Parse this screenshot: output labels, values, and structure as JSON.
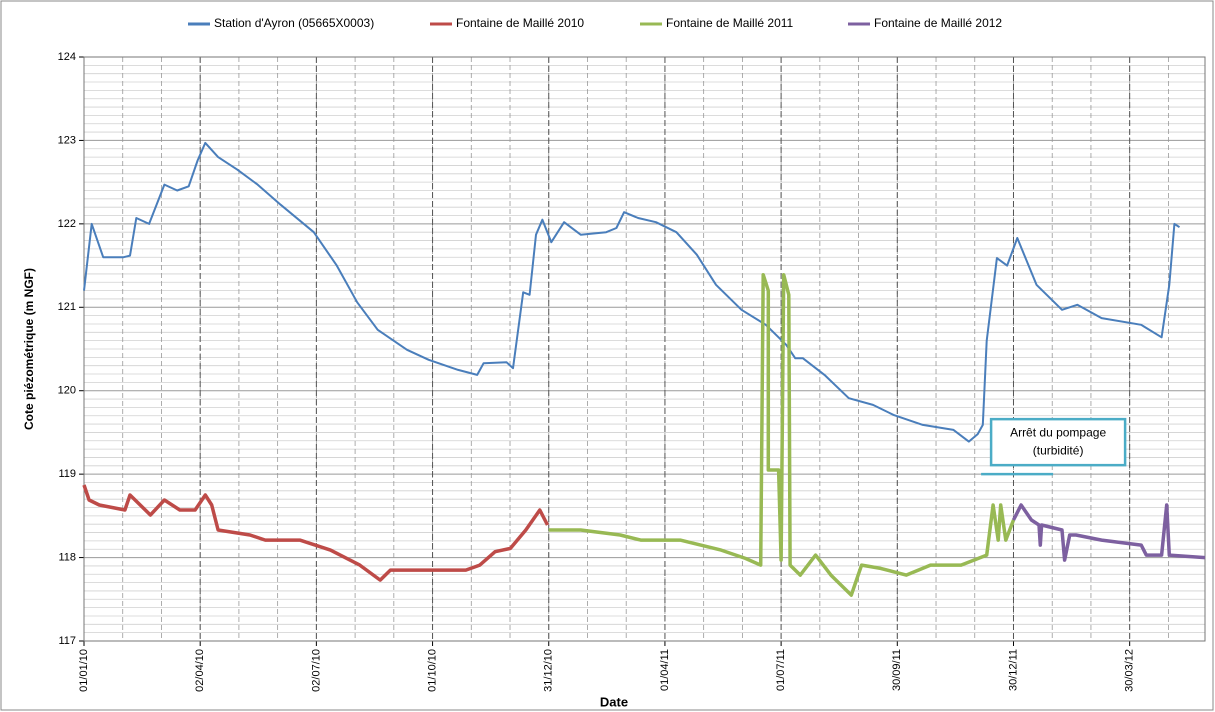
{
  "chart_data": {
    "type": "line",
    "x_label": "Date",
    "y_label": "Cote piézométrique (m NGF)",
    "legend": "top",
    "grid": true,
    "ylim": [
      117,
      124
    ],
    "yticks": [
      117,
      118,
      119,
      120,
      121,
      122,
      123,
      124
    ],
    "xlim": [
      "2010-01-01",
      "2012-05-28"
    ],
    "xticks": [
      {
        "value": "2010-01-01",
        "label": "01/01/10"
      },
      {
        "value": "2010-04-02",
        "label": "02/04/10"
      },
      {
        "value": "2010-07-02",
        "label": "02/07/10"
      },
      {
        "value": "2010-10-01",
        "label": "01/10/10"
      },
      {
        "value": "2010-12-31",
        "label": "31/12/10"
      },
      {
        "value": "2011-04-01",
        "label": "01/04/11"
      },
      {
        "value": "2011-07-01",
        "label": "01/07/11"
      },
      {
        "value": "2011-09-30",
        "label": "30/09/11"
      },
      {
        "value": "2011-12-30",
        "label": "30/12/11"
      },
      {
        "value": "2012-03-30",
        "label": "30/03/12"
      }
    ],
    "annotation": {
      "lines": [
        "Arrêt du pompage",
        "(turbidité)"
      ],
      "x": "2011-12-25",
      "y": 119
    },
    "series": [
      {
        "name": "Station d'Ayron (05665X0003)",
        "color": "#4a7ebb",
        "x": [
          "2010-01-01",
          "2010-01-07",
          "2010-01-16",
          "2010-02-01",
          "2010-02-06",
          "2010-02-11",
          "2010-02-21",
          "2010-03-05",
          "2010-03-15",
          "2010-03-24",
          "2010-03-31",
          "2010-04-06",
          "2010-04-16",
          "2010-05-01",
          "2010-05-17",
          "2010-06-04",
          "2010-06-30",
          "2010-07-18",
          "2010-08-03",
          "2010-08-19",
          "2010-09-11",
          "2010-09-28",
          "2010-10-21",
          "2010-11-05",
          "2010-11-10",
          "2010-11-28",
          "2010-12-03",
          "2010-12-11",
          "2010-12-16",
          "2010-12-21",
          "2010-12-26",
          "2011-01-02",
          "2011-01-12",
          "2011-01-25",
          "2011-02-14",
          "2011-02-22",
          "2011-02-28",
          "2011-03-11",
          "2011-03-25",
          "2011-04-10",
          "2011-04-26",
          "2011-05-11",
          "2011-05-31",
          "2011-06-19",
          "2011-07-05",
          "2011-07-12",
          "2011-07-18",
          "2011-08-04",
          "2011-08-23",
          "2011-09-11",
          "2011-09-27",
          "2011-10-20",
          "2011-11-13",
          "2011-11-25",
          "2011-12-02",
          "2011-12-06",
          "2011-12-09",
          "2011-12-17",
          "2011-12-25",
          "2012-01-02",
          "2012-01-17",
          "2012-02-06",
          "2012-02-18",
          "2012-03-08",
          "2012-04-08",
          "2012-04-24",
          "2012-04-30",
          "2012-05-04",
          "2012-05-08"
        ],
        "values": [
          121.2,
          122.0,
          121.6,
          121.6,
          121.62,
          122.07,
          122.0,
          122.47,
          122.4,
          122.45,
          122.76,
          122.97,
          122.8,
          122.65,
          122.47,
          122.23,
          121.9,
          121.5,
          121.06,
          120.73,
          120.49,
          120.37,
          120.25,
          120.19,
          120.33,
          120.34,
          120.27,
          121.18,
          121.15,
          121.87,
          122.05,
          121.78,
          122.02,
          121.87,
          121.9,
          121.95,
          122.14,
          122.07,
          122.02,
          121.9,
          121.63,
          121.27,
          120.97,
          120.79,
          120.55,
          120.39,
          120.39,
          120.19,
          119.91,
          119.83,
          119.71,
          119.59,
          119.53,
          119.39,
          119.48,
          119.59,
          120.6,
          121.59,
          121.5,
          121.83,
          121.27,
          120.97,
          121.03,
          120.87,
          120.79,
          120.64,
          121.27,
          122.0,
          121.96
        ]
      },
      {
        "name": "Fontaine de Maillé 2010",
        "color": "#be4b48",
        "x": [
          "2010-01-01",
          "2010-01-05",
          "2010-01-13",
          "2010-02-02",
          "2010-02-06",
          "2010-02-14",
          "2010-02-22",
          "2010-03-05",
          "2010-03-17",
          "2010-03-29",
          "2010-04-06",
          "2010-04-11",
          "2010-04-16",
          "2010-05-11",
          "2010-05-23",
          "2010-06-19",
          "2010-07-13",
          "2010-08-05",
          "2010-08-21",
          "2010-08-29",
          "2010-09-21",
          "2010-10-27",
          "2010-11-07",
          "2010-11-19",
          "2010-12-01",
          "2010-12-13",
          "2010-12-24",
          "2010-12-30"
        ],
        "values": [
          118.87,
          118.69,
          118.63,
          118.57,
          118.75,
          118.63,
          118.51,
          118.69,
          118.57,
          118.57,
          118.75,
          118.63,
          118.33,
          118.27,
          118.21,
          118.21,
          118.09,
          117.91,
          117.73,
          117.85,
          117.85,
          117.85,
          117.91,
          118.07,
          118.11,
          118.33,
          118.57,
          118.39
        ]
      },
      {
        "name": "Fontaine de Maillé 2011",
        "color": "#98b954",
        "x": [
          "2010-12-31",
          "2011-01-25",
          "2011-02-25",
          "2011-03-13",
          "2011-04-13",
          "2011-05-15",
          "2011-06-03",
          "2011-06-15",
          "2011-06-17",
          "2011-06-21",
          "2011-06-21",
          "2011-06-29",
          "2011-07-01",
          "2011-07-03",
          "2011-07-07",
          "2011-07-08",
          "2011-07-16",
          "2011-07-28",
          "2011-08-09",
          "2011-08-25",
          "2011-09-02",
          "2011-09-17",
          "2011-10-07",
          "2011-10-26",
          "2011-11-19",
          "2011-12-09",
          "2011-12-14",
          "2011-12-18",
          "2011-12-20",
          "2011-12-24",
          "2011-12-30"
        ],
        "values": [
          118.33,
          118.33,
          118.27,
          118.21,
          118.21,
          118.09,
          117.99,
          117.91,
          121.39,
          121.2,
          119.05,
          119.05,
          117.97,
          121.39,
          121.15,
          117.91,
          117.79,
          118.03,
          117.79,
          117.55,
          117.91,
          117.87,
          117.79,
          117.91,
          117.91,
          118.03,
          118.63,
          118.21,
          118.63,
          118.21,
          118.45
        ]
      },
      {
        "name": "Fontaine de Maillé 2012",
        "color": "#7d60a0",
        "x": [
          "2011-12-30",
          "2012-01-05",
          "2012-01-13",
          "2012-01-19",
          "2012-01-20",
          "2012-01-21",
          "2012-02-06",
          "2012-02-08",
          "2012-02-12",
          "2012-02-17",
          "2012-03-08",
          "2012-04-08",
          "2012-04-12",
          "2012-04-24",
          "2012-04-28",
          "2012-04-30",
          "2012-05-28"
        ],
        "values": [
          118.45,
          118.63,
          118.45,
          118.39,
          118.15,
          118.39,
          118.33,
          117.97,
          118.27,
          118.27,
          118.21,
          118.15,
          118.03,
          118.03,
          118.63,
          118.03,
          118.0
        ]
      }
    ]
  }
}
